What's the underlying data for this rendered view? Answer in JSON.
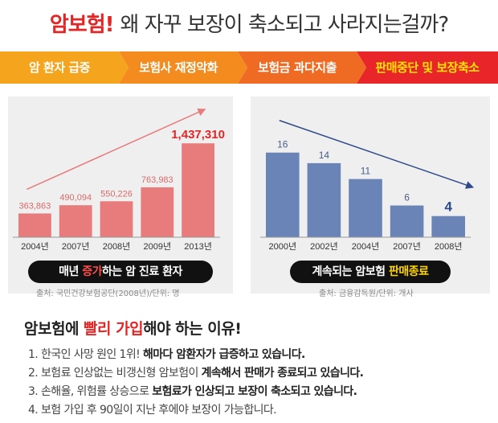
{
  "header": {
    "title_red": "암보험!",
    "title_rest": "왜 자꾸 보장이 축소되고 사라지는걸까?"
  },
  "flow": {
    "steps": [
      {
        "label": "암 환자 급증",
        "color": "#f5a51d",
        "text_color": "#ffffff"
      },
      {
        "label": "보험사 재정악화",
        "color": "#f38b1e",
        "text_color": "#ffffff"
      },
      {
        "label": "보험금 과다지출",
        "color": "#ef6b23",
        "text_color": "#ffffff"
      },
      {
        "label": "판매중단 및 보장축소",
        "color": "#e8262a",
        "text_color": "#ffe400"
      }
    ]
  },
  "chart_data": [
    {
      "type": "bar",
      "categories": [
        "2004년",
        "2007년",
        "2008년",
        "2009년",
        "2013년"
      ],
      "values": [
        363863,
        490094,
        550226,
        763983,
        1437310
      ],
      "value_labels": [
        "363,863",
        "490,094",
        "550,226",
        "763,983",
        "1,437,310"
      ],
      "ylim": [
        0,
        1600000
      ],
      "bar_color": "#e87b7b",
      "highlight_color": "#e42525",
      "trend": "up",
      "caption_pre": "매년 ",
      "caption_hl": "증가",
      "caption_post": "하는 암 진료 환자",
      "source": "출처: 국민건강보험공단(2008년)/단위: 명"
    },
    {
      "type": "bar",
      "categories": [
        "2000년",
        "2002년",
        "2004년",
        "2007년",
        "2008년"
      ],
      "values": [
        16,
        14,
        11,
        6,
        4
      ],
      "value_labels": [
        "16",
        "14",
        "11",
        "6",
        "4"
      ],
      "ylim": [
        0,
        19
      ],
      "bar_color": "#6b84b8",
      "highlight_color": "#2e4a8a",
      "trend": "down",
      "caption_pre": "계속되는 암보험 ",
      "caption_hl": "판매종료",
      "caption_post": "",
      "source": "출처: 금융감독원/단위: 개사"
    }
  ],
  "reasons": {
    "title_pre": "암보험에 ",
    "title_hl": "빨리 가입",
    "title_post": "해야 하는 이유!",
    "items": [
      {
        "pre": "1. 한국인 사망 원인 1위! ",
        "bold": "해마다 암환자가 급증하고 있습니다.",
        "post": ""
      },
      {
        "pre": "2. 보험료 인상없는 비갱신형 암보험이 ",
        "bold": "계속해서 판매가 종료되고 있습니다.",
        "post": ""
      },
      {
        "pre": "3. 손해율, 위험률 상승으로 ",
        "bold": "보험료가 인상되고 보장이 축소되고 있습니다.",
        "post": ""
      },
      {
        "pre": "4. 보험 가입 후 90일이 지난 후에야 보장이 가능합니다.",
        "bold": "",
        "post": ""
      }
    ]
  }
}
